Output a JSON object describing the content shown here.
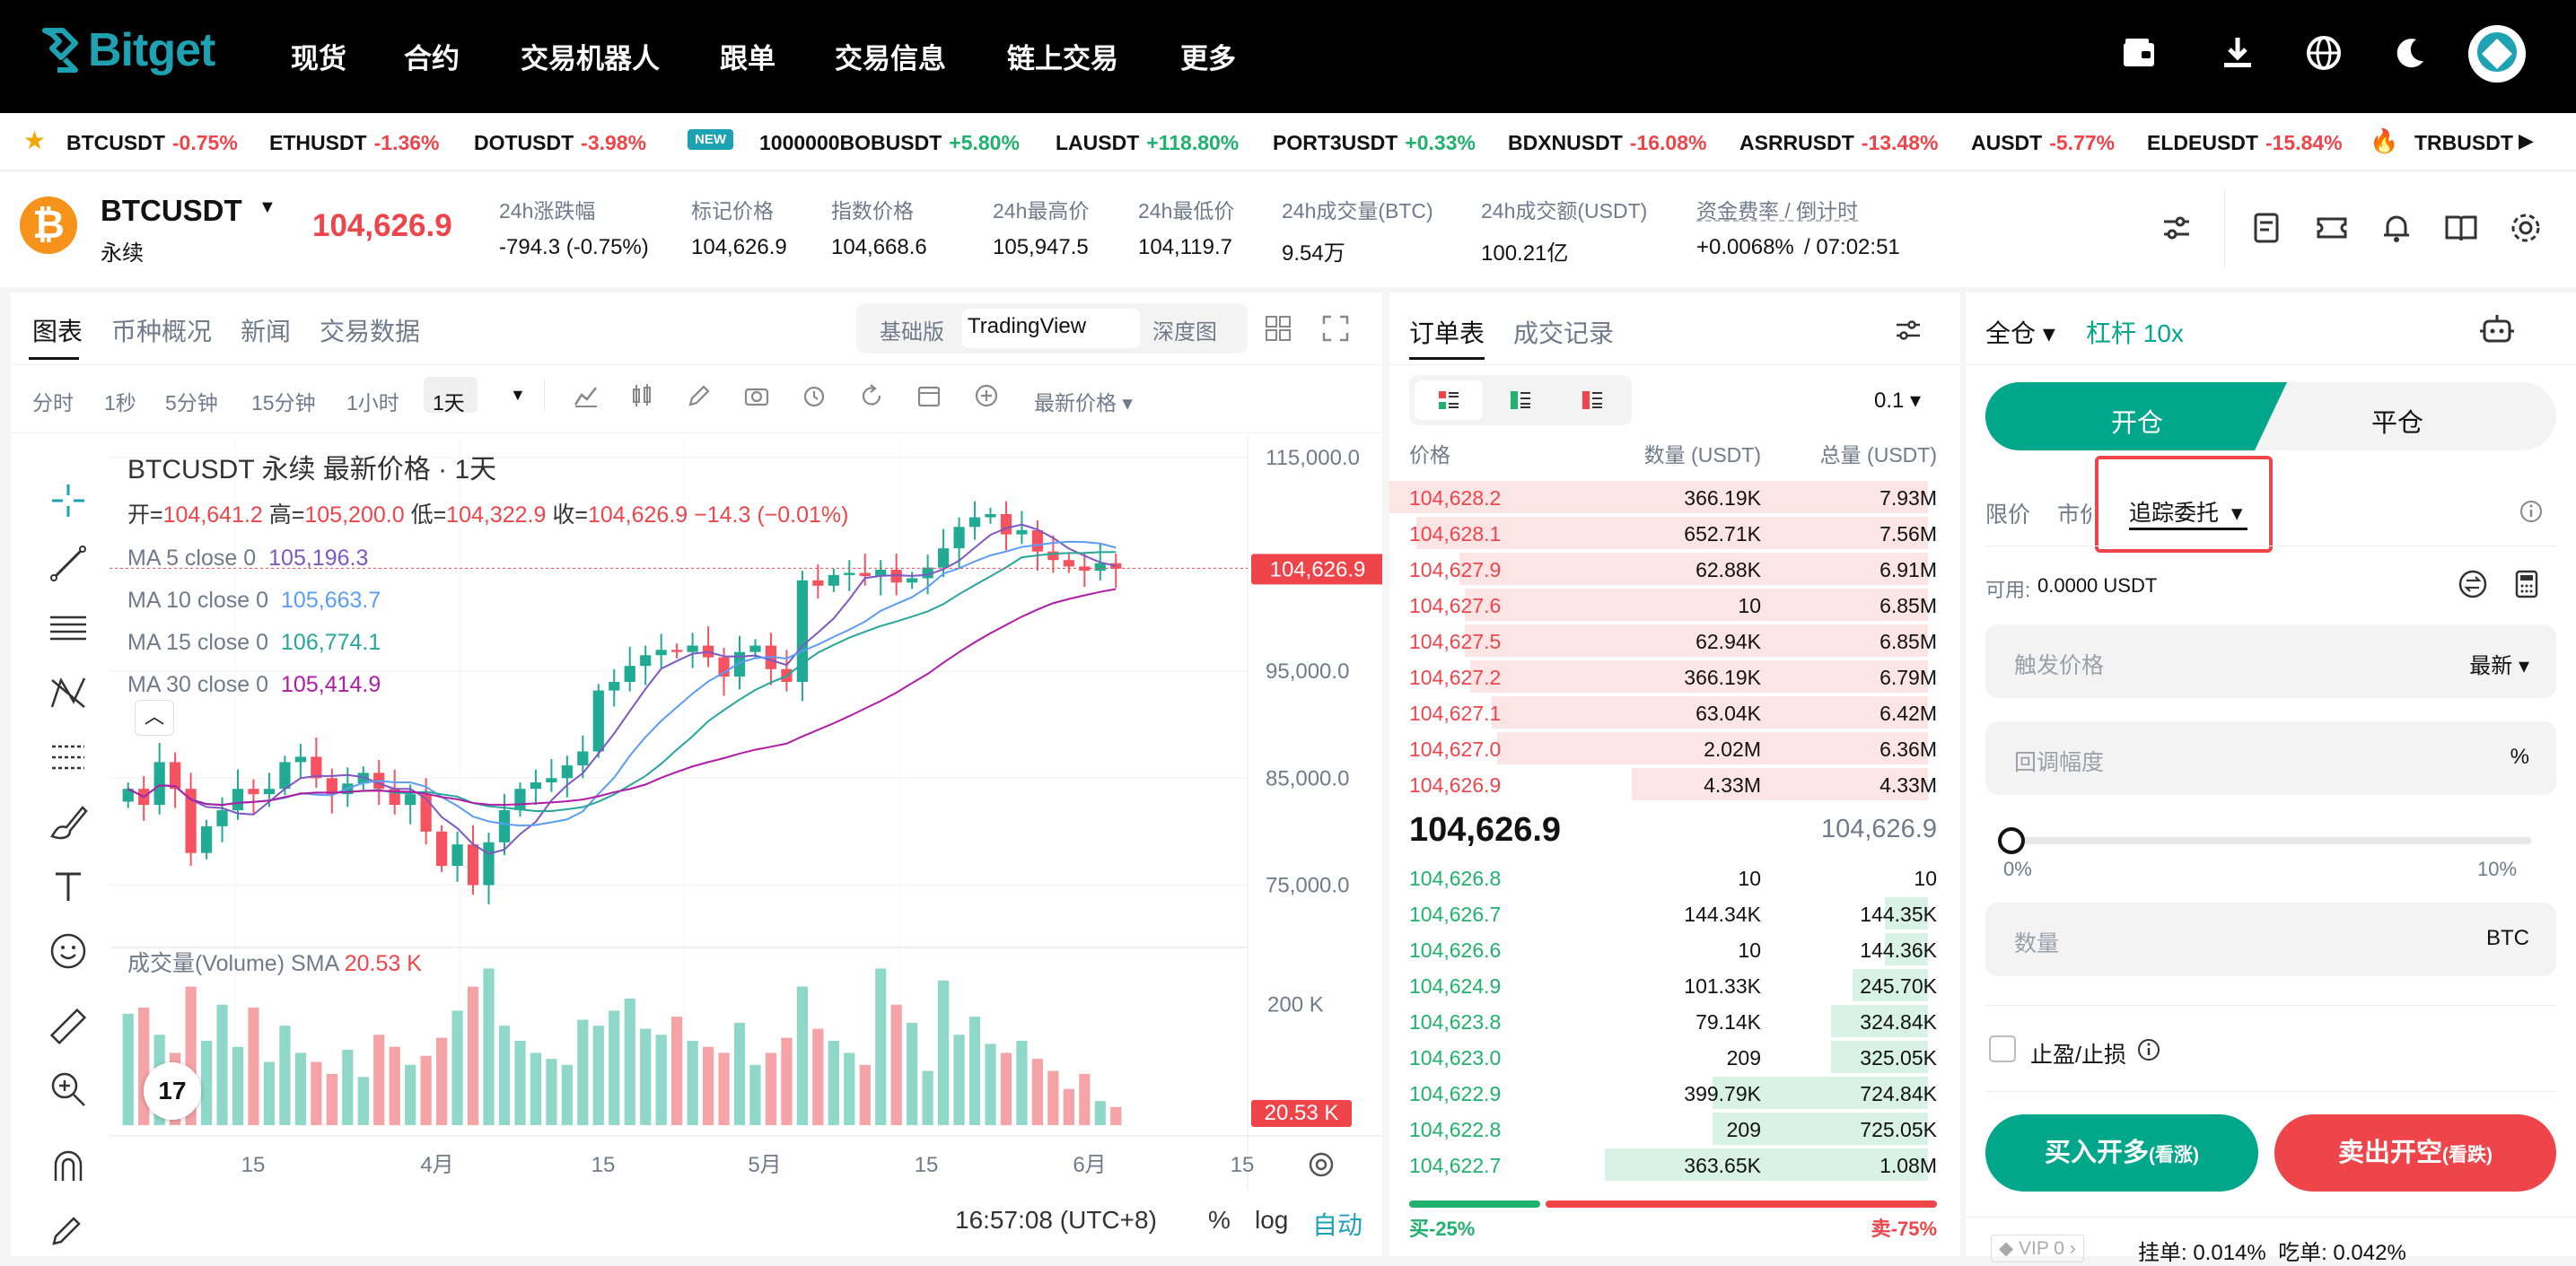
{
  "brand": {
    "name": "Bitget",
    "color": "#1da2b4"
  },
  "nav": {
    "items": [
      "现货",
      "合约",
      "交易机器人",
      "跟单",
      "交易信息",
      "链上交易",
      "更多"
    ],
    "icons": [
      "wallet-icon",
      "download-icon",
      "globe-icon",
      "moon-icon",
      "avatar"
    ]
  },
  "ticker": [
    {
      "sym": "BTCUSDT",
      "chg": "-0.75%",
      "dir": "dn"
    },
    {
      "sym": "ETHUSDT",
      "chg": "-1.36%",
      "dir": "dn"
    },
    {
      "sym": "DOTUSDT",
      "chg": "-3.98%",
      "dir": "dn"
    },
    {
      "sym": "1000000BOBUSDT",
      "chg": "+5.80%",
      "dir": "up"
    },
    {
      "sym": "LAUSDT",
      "chg": "+118.80%",
      "dir": "up"
    },
    {
      "sym": "PORT3USDT",
      "chg": "+0.33%",
      "dir": "up"
    },
    {
      "sym": "BDXNUSDT",
      "chg": "-16.08%",
      "dir": "dn"
    },
    {
      "sym": "ASRRUSDT",
      "chg": "-13.48%",
      "dir": "dn"
    },
    {
      "sym": "AUSDT",
      "chg": "-5.77%",
      "dir": "dn"
    },
    {
      "sym": "ELDEUSDT",
      "chg": "-15.84%",
      "dir": "dn"
    },
    {
      "sym": "TRBUSDT",
      "chg": "",
      "dir": "dn"
    }
  ],
  "ticker_new_badge": "NEW",
  "symbol": {
    "name": "BTCUSDT",
    "type": "永续",
    "price": "104,626.9",
    "stats": [
      {
        "label": "24h涨跌幅",
        "value": "-794.3 (-0.75%)",
        "cls": "dn"
      },
      {
        "label": "标记价格",
        "value": "104,626.9",
        "cls": ""
      },
      {
        "label": "指数价格",
        "value": "104,668.6",
        "cls": ""
      },
      {
        "label": "24h最高价",
        "value": "105,947.5",
        "cls": ""
      },
      {
        "label": "24h最低价",
        "value": "104,119.7",
        "cls": ""
      },
      {
        "label": "24h成交量(BTC)",
        "value": "9.54万",
        "cls": ""
      },
      {
        "label": "24h成交额(USDT)",
        "value": "100.21亿",
        "cls": ""
      },
      {
        "label": "资金费率 / 倒计时",
        "value": "+0.0068%",
        "value2": "/ 07:02:51",
        "cls": "up"
      }
    ]
  },
  "chart_tabs": [
    "图表",
    "币种概况",
    "新闻",
    "交易数据"
  ],
  "chart_modes": [
    "基础版",
    "TradingView",
    "深度图"
  ],
  "intervals": [
    "分时",
    "1秒",
    "5分钟",
    "15分钟",
    "1小时",
    "1天"
  ],
  "price_type": "最新价格",
  "legend": {
    "title": "BTCUSDT 永续 最新价格 · 1天",
    "ohlc": {
      "o_label": "开=",
      "o": "104,641.2",
      "h_label": "高=",
      "h": "105,200.0",
      "l_label": "低=",
      "l": "104,322.9",
      "c_label": "收=",
      "c": "104,626.9",
      "chg": "−14.3 (−0.01%)"
    },
    "ma": [
      {
        "name": "MA 5 close 0",
        "value": "105,196.3",
        "color": "#7e57c2"
      },
      {
        "name": "MA 10 close 0",
        "value": "105,663.7",
        "color": "#5b9cf6"
      },
      {
        "name": "MA 15 close 0",
        "value": "106,774.1",
        "color": "#26a69a"
      },
      {
        "name": "MA 30 close 0",
        "value": "105,414.9",
        "color": "#b11ba6"
      }
    ],
    "volume": "成交量(Volume) SMA",
    "volume_val": "20.53 K"
  },
  "chart_data": {
    "type": "candlestick",
    "interval": "1天",
    "y_ticks": [
      "115,000.0",
      "95,000.0",
      "85,000.0",
      "75,000.0"
    ],
    "last_price": "104,626.9",
    "vol_ticks": [
      "200 K"
    ],
    "vol_last": "20.53 K",
    "x_ticks": [
      "15",
      "4月",
      "15",
      "5月",
      "15",
      "6月",
      "15"
    ],
    "closes": [
      84000,
      82500,
      86500,
      84000,
      78000,
      80500,
      82000,
      84000,
      83500,
      84000,
      86500,
      87000,
      85000,
      83500,
      84500,
      85500,
      84000,
      82500,
      83500,
      80000,
      76800,
      78800,
      75000,
      79000,
      82000,
      84000,
      84600,
      85000,
      86200,
      87500,
      93200,
      94000,
      95500,
      96500,
      97000,
      96800,
      97400,
      96300,
      94500,
      96800,
      97400,
      95200,
      94000,
      103500,
      103000,
      104000,
      104200,
      103900,
      104500,
      103300,
      103700,
      104700,
      106500,
      108500,
      109400,
      109700,
      107800,
      108200,
      106200,
      105400,
      104800,
      104400,
      105100,
      104600
    ],
    "bar_dirs": "gr",
    "volumes": [
      185,
      195,
      150,
      120,
      230,
      140,
      200,
      130,
      195,
      105,
      165,
      120,
      105,
      85,
      125,
      80,
      150,
      130,
      100,
      115,
      145,
      190,
      230,
      260,
      165,
      140,
      120,
      110,
      100,
      175,
      165,
      190,
      210,
      160,
      150,
      180,
      140,
      130,
      120,
      170,
      100,
      120,
      145,
      230,
      160,
      140,
      120,
      100,
      260,
      200,
      170,
      90,
      240,
      150,
      180,
      135,
      120,
      140,
      110,
      90,
      60,
      85,
      40,
      30
    ],
    "time": "16:57:08 (UTC+8)",
    "axis_opts": [
      "%",
      "log",
      "自动"
    ]
  },
  "orderbook": {
    "tabs": [
      "订单表",
      "成交记录"
    ],
    "precision": "0.1",
    "headers": [
      "价格",
      "数量 (USDT)",
      "总量 (USDT)"
    ],
    "asks": [
      [
        "104,628.2",
        "366.19K",
        "7.93M",
        1.0
      ],
      [
        "104,628.1",
        "652.71K",
        "7.56M",
        0.95
      ],
      [
        "104,627.9",
        "62.88K",
        "6.91M",
        0.87
      ],
      [
        "104,627.6",
        "10",
        "6.85M",
        0.86
      ],
      [
        "104,627.5",
        "62.94K",
        "6.85M",
        0.86
      ],
      [
        "104,627.2",
        "366.19K",
        "6.79M",
        0.85
      ],
      [
        "104,627.1",
        "63.04K",
        "6.42M",
        0.81
      ],
      [
        "104,627.0",
        "2.02M",
        "6.36M",
        0.8
      ],
      [
        "104,626.9",
        "4.33M",
        "4.33M",
        0.55
      ]
    ],
    "mid": "104,626.9",
    "mark": "104,626.9",
    "bids": [
      [
        "104,626.8",
        "10",
        "10",
        0.0
      ],
      [
        "104,626.7",
        "144.34K",
        "144.35K",
        0.08
      ],
      [
        "104,626.6",
        "10",
        "144.36K",
        0.08
      ],
      [
        "104,624.9",
        "101.33K",
        "245.70K",
        0.14
      ],
      [
        "104,623.8",
        "79.14K",
        "324.84K",
        0.18
      ],
      [
        "104,623.0",
        "209",
        "325.05K",
        0.18
      ],
      [
        "104,622.9",
        "399.79K",
        "724.84K",
        0.4
      ],
      [
        "104,622.8",
        "209",
        "725.05K",
        0.4
      ],
      [
        "104,622.7",
        "363.65K",
        "1.08M",
        0.6
      ]
    ],
    "buy_pct": "买-25%",
    "sell_pct": "卖-75%"
  },
  "trade": {
    "margin_mode": "全仓",
    "leverage": "杠杆 10x",
    "open": "开仓",
    "close": "平仓",
    "order_types": [
      "限价",
      "市价",
      "追踪委托"
    ],
    "available_label": "可用:",
    "available": "0.0000 USDT",
    "trigger_placeholder": "触发价格",
    "trigger_unit": "最新",
    "callback_placeholder": "回调幅度",
    "callback_unit": "%",
    "slider_min": "0%",
    "slider_max": "10%",
    "slider_value": 0,
    "qty_placeholder": "数量",
    "qty_unit": "BTC",
    "tpsl": "止盈/止损",
    "buy": "买入开多",
    "buy_sub": "(看涨)",
    "sell": "卖出开空",
    "sell_sub": "(看跌)",
    "vip": "VIP 0",
    "fees": "挂单: 0.014%  吃单: 0.042%"
  },
  "colors": {
    "up": "#20b26c",
    "down": "#ef454a",
    "accent": "#00a78a",
    "highlight": "#ef454a"
  }
}
